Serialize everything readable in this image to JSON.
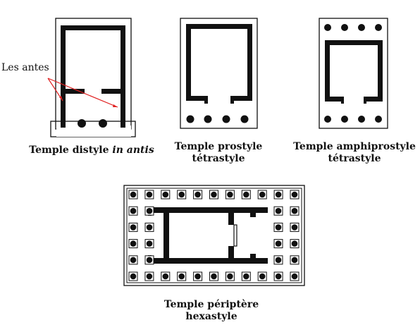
{
  "annotation": {
    "label": "Les antes",
    "arrow_color": "#e02020"
  },
  "captions": {
    "distyle": {
      "main": "Temple distyle ",
      "italic": "in antis"
    },
    "prostyle": {
      "line1": "Temple prostyle",
      "line2": "tétrastyle"
    },
    "amphiprostyle": {
      "line1": "Temple amphiprostyle",
      "line2": "tétrastyle"
    },
    "periptere": {
      "line1": "Temple périptère",
      "line2": "hexastyle"
    }
  },
  "colors": {
    "ink": "#111111",
    "paper": "#ffffff",
    "arrow": "#e02020"
  }
}
